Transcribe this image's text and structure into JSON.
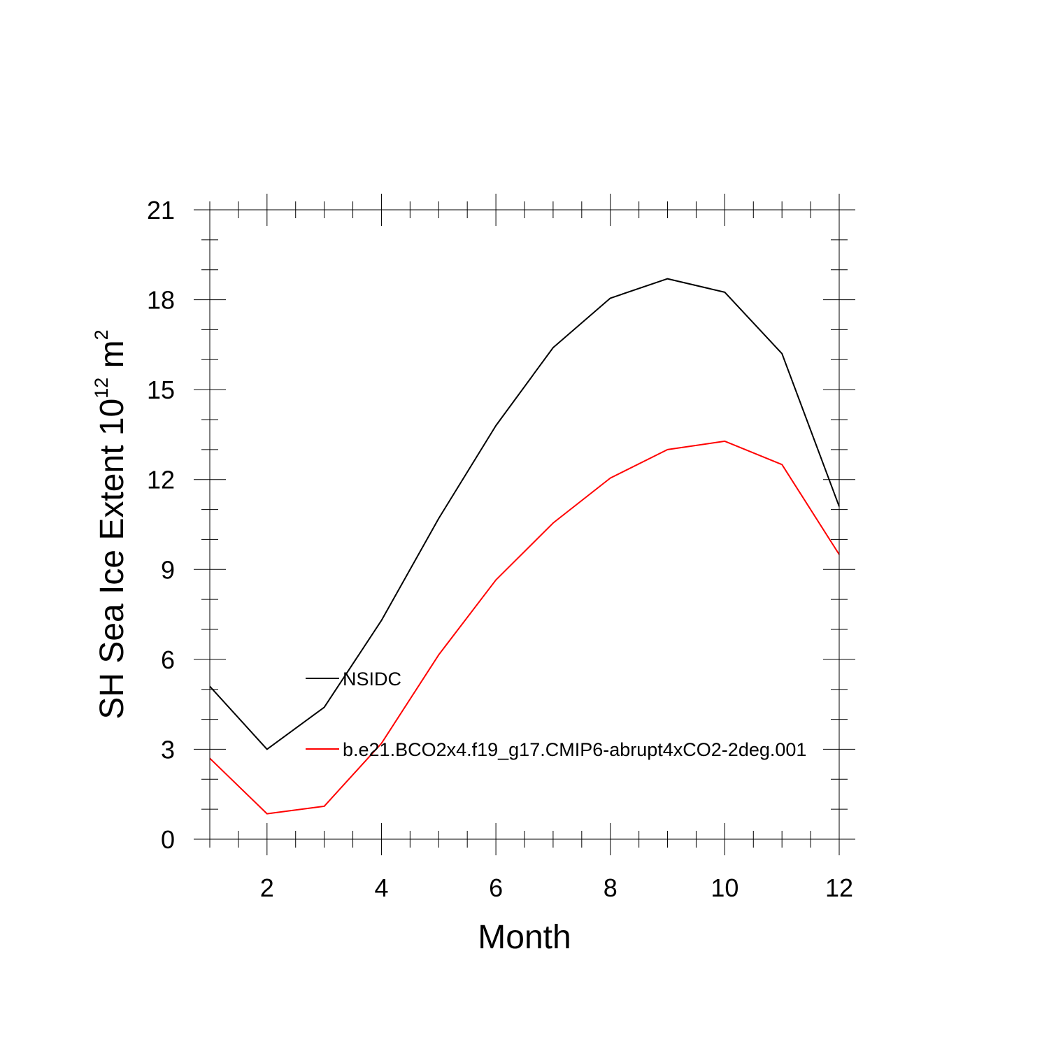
{
  "chart_data": {
    "type": "line",
    "title": "",
    "xlabel": "Month",
    "ylabel_main": "SH Sea Ice Extent 10",
    "ylabel_exp": "12",
    "ylabel_unit": " m",
    "ylabel_unit_exp": "2",
    "xlim": [
      1,
      12
    ],
    "ylim": [
      0,
      21
    ],
    "x_ticks": [
      2,
      4,
      6,
      8,
      10,
      12
    ],
    "x_tick_labels": [
      "2",
      "4",
      "6",
      "8",
      "10",
      "12"
    ],
    "y_ticks": [
      0,
      3,
      6,
      9,
      12,
      15,
      18,
      21
    ],
    "y_tick_labels": [
      "0",
      "3",
      "6",
      "9",
      "12",
      "15",
      "18",
      "21"
    ],
    "grid": false,
    "legend_position": "inside-lower-left",
    "x": [
      1,
      2,
      3,
      4,
      5,
      6,
      7,
      8,
      9,
      10,
      11,
      12
    ],
    "series": [
      {
        "name": "NSIDC",
        "color": "#000000",
        "values": [
          5.1,
          3.0,
          4.4,
          7.3,
          10.7,
          13.8,
          16.4,
          18.05,
          18.7,
          18.25,
          16.2,
          11.1
        ]
      },
      {
        "name": "b.e21.BCO2x4.f19_g17.CMIP6-abrupt4xCO2-2deg.001",
        "color": "#ff0000",
        "values": [
          2.7,
          0.85,
          1.1,
          3.2,
          6.15,
          8.65,
          10.55,
          12.05,
          13.0,
          13.28,
          12.5,
          9.5
        ]
      }
    ]
  }
}
